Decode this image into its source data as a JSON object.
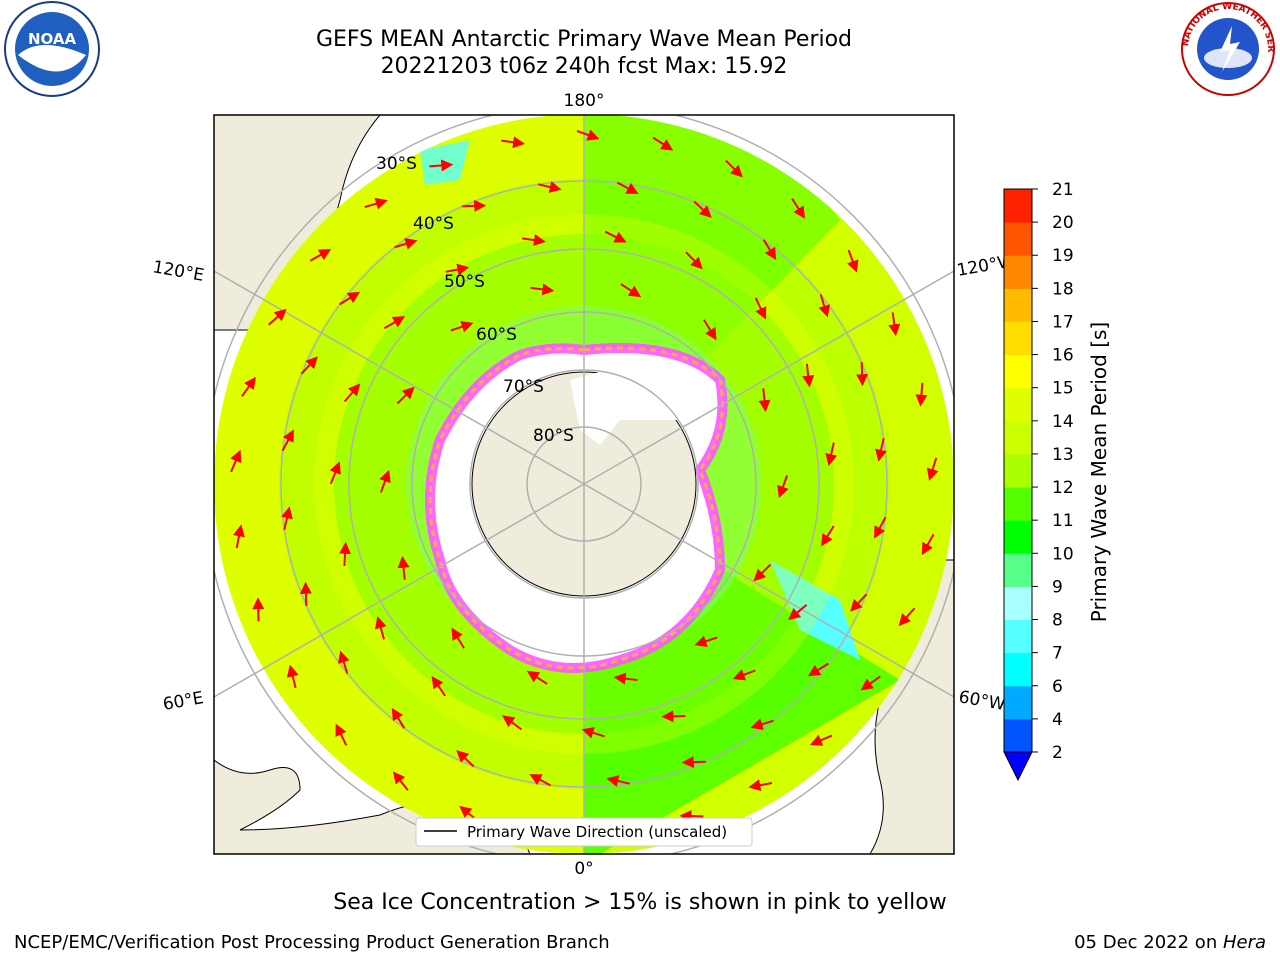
{
  "title": {
    "line1": "GEFS MEAN Antarctic Primary Wave Mean Period",
    "line2": "20221203 t06z 240h fcst   Max: 15.92"
  },
  "logos": {
    "left": "noaa-logo",
    "left_text": "NOAA",
    "right": "nws-logo",
    "right_text": "NATIONAL WEATHER SERVICE"
  },
  "map": {
    "projection": "south-polar-stereographic",
    "longitude_labels": {
      "top": "180°",
      "bottom": "0°",
      "upper_left": "120°E",
      "upper_right": "120°W",
      "lower_left": "60°E",
      "lower_right": "60°W"
    },
    "latitude_labels": [
      "30°S",
      "40°S",
      "50°S",
      "60°S",
      "70°S",
      "80°S"
    ],
    "legend_label": "Primary Wave Direction (unscaled)",
    "colors": {
      "land": "#efecdc",
      "ice": "#ffffff",
      "ice_edge_pink": "#ff55ff",
      "ice_edge_orange": "#ffaa55",
      "arrow": "#ff0000",
      "grid": "#b0b0b0"
    }
  },
  "colorbar": {
    "label": "Primary Wave Mean Period [s]",
    "ticks": [
      "2",
      "4",
      "6",
      "7",
      "8",
      "9",
      "10",
      "11",
      "12",
      "13",
      "14",
      "15",
      "16",
      "17",
      "18",
      "19",
      "20",
      "21"
    ],
    "colors": [
      "#0055ff",
      "#00aaff",
      "#00ffff",
      "#55ffff",
      "#aaffff",
      "#55ff88",
      "#00ff00",
      "#55ff00",
      "#aaff00",
      "#ccff00",
      "#ddff00",
      "#ffff00",
      "#ffdd00",
      "#ffbb00",
      "#ff8800",
      "#ff5500",
      "#ff2200",
      "#ff0000"
    ],
    "extend_color": "#0000ff"
  },
  "footer": {
    "sea_ice_note": "Sea Ice Concentration > 15% is shown in pink to yellow",
    "left": "NCEP/EMC/Verification Post Processing Product Generation Branch",
    "right_date": "05 Dec 2022 on ",
    "right_host": "Hera"
  }
}
